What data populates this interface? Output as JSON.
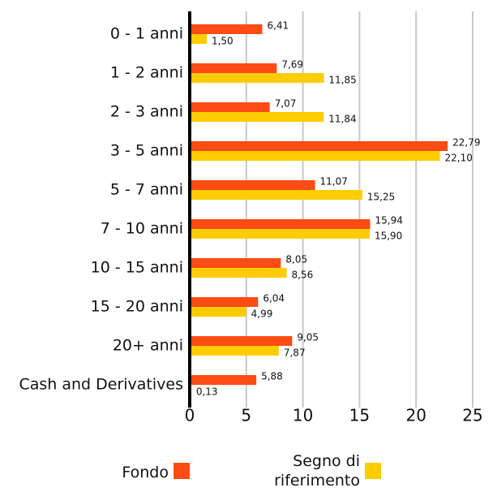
{
  "chart_data": {
    "type": "bar",
    "orientation": "horizontal",
    "categories": [
      "0 - 1 anni",
      "1 - 2 anni",
      "2 - 3 anni",
      "3 - 5 anni",
      "5 - 7 anni",
      "7 - 10 anni",
      "10 - 15 anni",
      "15 - 20 anni",
      "20+ anni",
      "Cash and Derivatives"
    ],
    "series": [
      {
        "name": "Fondo",
        "color": "#ff4b14",
        "values": [
          6.41,
          7.69,
          7.07,
          22.79,
          11.07,
          15.94,
          8.05,
          6.04,
          9.05,
          5.88
        ],
        "value_labels": [
          "6,41",
          "7,69",
          "7,07",
          "22,79",
          "11,07",
          "15,94",
          "8,05",
          "6,04",
          "9,05",
          "5,88"
        ]
      },
      {
        "name": "Segno di riferimento",
        "color": "#ffcc00",
        "values": [
          1.5,
          11.85,
          11.84,
          22.1,
          15.25,
          15.9,
          8.56,
          4.99,
          7.87,
          0.13
        ],
        "value_labels": [
          "1,50",
          "11,85",
          "11,84",
          "22,10",
          "15,25",
          "15,90",
          "8,56",
          "4,99",
          "7,87",
          "0,13"
        ]
      }
    ],
    "xlim": [
      0,
      25
    ],
    "xticks": [
      0,
      5,
      10,
      15,
      20,
      25
    ],
    "grid": true
  }
}
